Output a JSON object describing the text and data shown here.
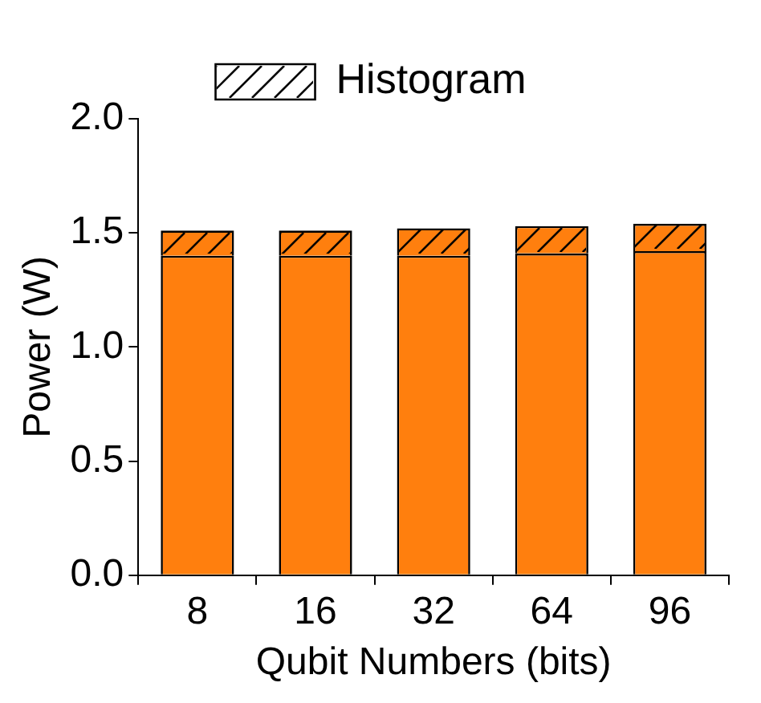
{
  "chart_data": {
    "type": "bar",
    "stacked": true,
    "xlabel": "Qubit Numbers (bits)",
    "ylabel": "Power (W)",
    "categories": [
      "8",
      "16",
      "32",
      "64",
      "96"
    ],
    "series": [
      {
        "color": "#ff7f0e",
        "values": [
          1.4,
          1.4,
          1.4,
          1.41,
          1.42
        ]
      },
      {
        "name": "Histogram",
        "color": "#ff7f0e",
        "values": [
          0.11,
          0.11,
          0.12,
          0.12,
          0.12
        ]
      }
    ],
    "ylim": [
      0,
      2.0
    ],
    "yticks": [
      {
        "value": 0,
        "label": "0.0"
      },
      {
        "value": 0.5,
        "label": "0.5"
      },
      {
        "value": 1,
        "label": "1.0"
      },
      {
        "value": 1.5,
        "label": "1.5"
      },
      {
        "value": 2,
        "label": "2.0"
      }
    ],
    "grid": false,
    "legend": "top"
  }
}
